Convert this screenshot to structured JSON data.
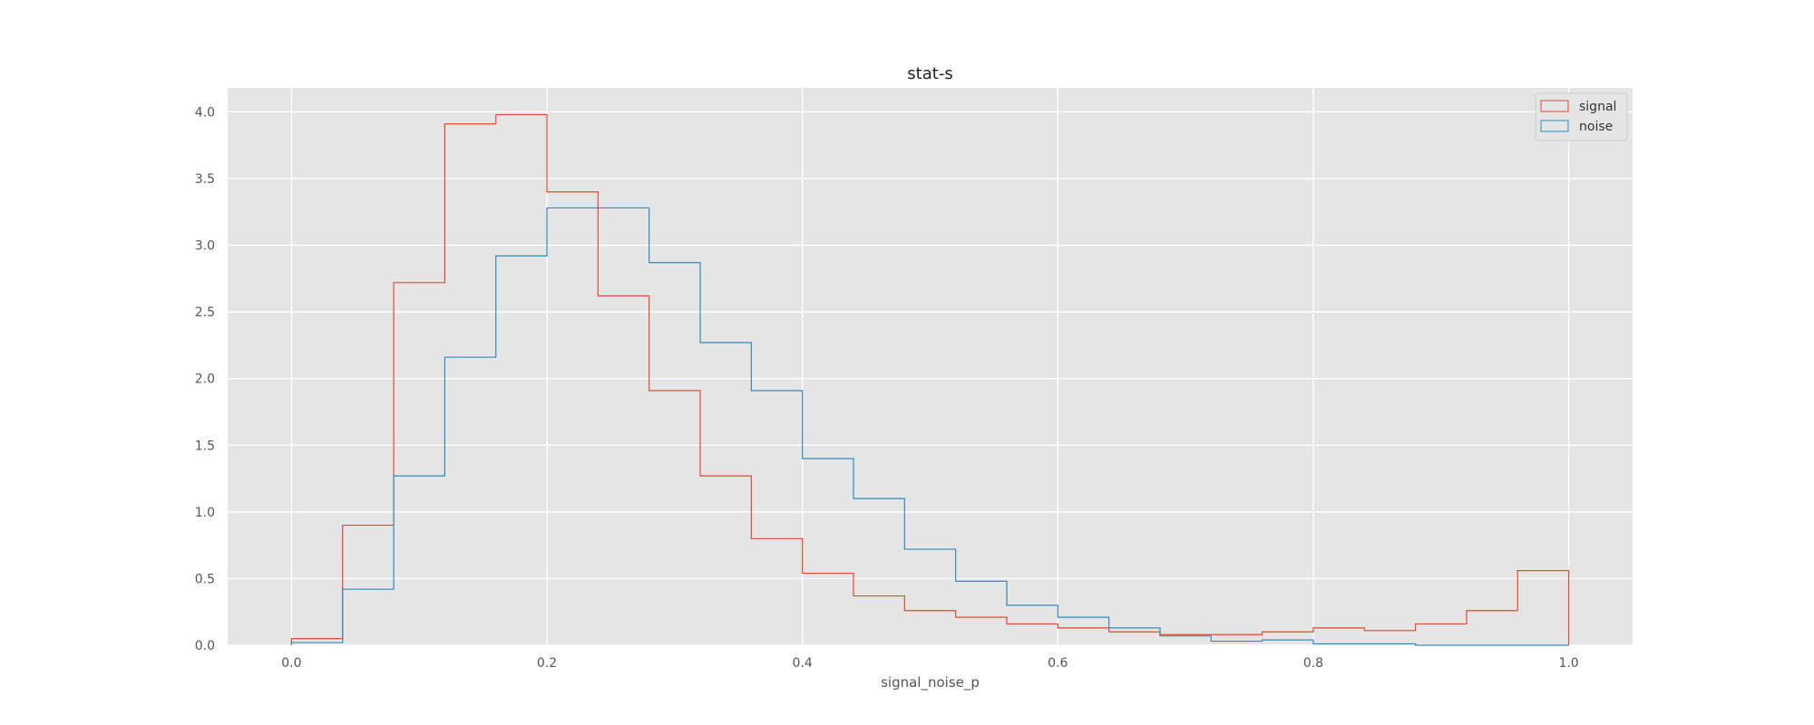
{
  "chart_data": {
    "type": "histogram-step",
    "title": "stat-s",
    "xlabel": "signal_noise_p",
    "ylabel": "",
    "xlim": [
      -0.05,
      1.05
    ],
    "ylim": [
      0,
      4.18
    ],
    "xticks": [
      0.0,
      0.2,
      0.4,
      0.6,
      0.8,
      1.0
    ],
    "xtick_labels": [
      "0.0",
      "0.2",
      "0.4",
      "0.6",
      "0.8",
      "1.0"
    ],
    "yticks": [
      0.0,
      0.5,
      1.0,
      1.5,
      2.0,
      2.5,
      3.0,
      3.5,
      4.0
    ],
    "ytick_labels": [
      "0.0",
      "0.5",
      "1.0",
      "1.5",
      "2.0",
      "2.5",
      "3.0",
      "3.5",
      "4.0"
    ],
    "grid": true,
    "legend_position": "top-right",
    "bin_edges": [
      0.0,
      0.04,
      0.08,
      0.12,
      0.16,
      0.2,
      0.24,
      0.28,
      0.32,
      0.36,
      0.4,
      0.44,
      0.48,
      0.52,
      0.56,
      0.6,
      0.64,
      0.68,
      0.72,
      0.76,
      0.8,
      0.84,
      0.88,
      0.92,
      0.96,
      1.0
    ],
    "series": [
      {
        "name": "signal",
        "color": "#E24A33",
        "values": [
          0.05,
          0.9,
          2.72,
          3.91,
          3.98,
          3.4,
          2.62,
          1.91,
          1.27,
          0.8,
          0.54,
          0.37,
          0.26,
          0.21,
          0.16,
          0.13,
          0.1,
          0.08,
          0.08,
          0.1,
          0.13,
          0.11,
          0.16,
          0.26,
          0.56
        ]
      },
      {
        "name": "noise",
        "color": "#348ABD",
        "values": [
          0.02,
          0.42,
          1.27,
          2.16,
          2.92,
          3.28,
          3.28,
          2.87,
          2.27,
          1.91,
          1.4,
          1.1,
          0.72,
          0.48,
          0.3,
          0.21,
          0.13,
          0.07,
          0.03,
          0.04,
          0.01,
          0.01,
          0.0,
          0.0,
          0.0
        ]
      }
    ]
  }
}
